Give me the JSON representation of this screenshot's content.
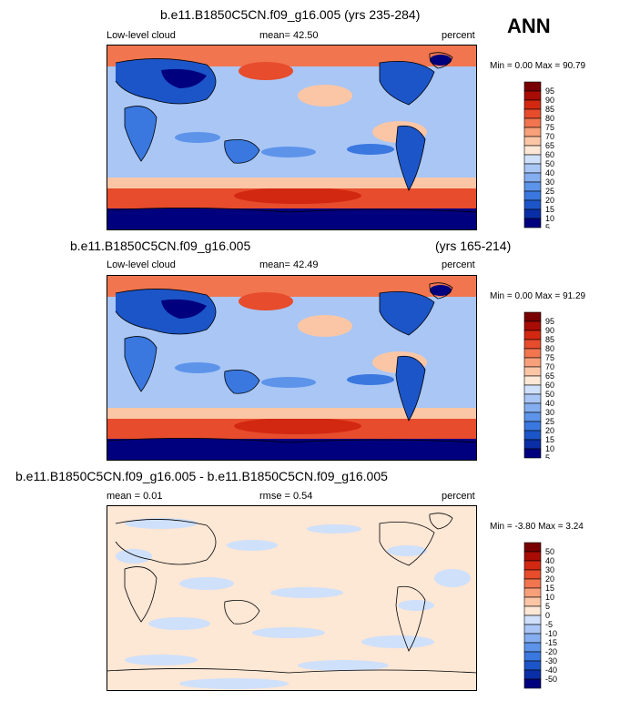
{
  "season": "ANN",
  "colors": {
    "cloud_scale": [
      "#00007e",
      "#0a2ea6",
      "#1c55c8",
      "#3a78e0",
      "#5d94ea",
      "#84aef0",
      "#a9c6f5",
      "#cfe0fa",
      "#fde7d5",
      "#fbc6a5",
      "#f7a07a",
      "#f1754f",
      "#e74c2c",
      "#d22812",
      "#a80c05",
      "#780000"
    ],
    "diff_scale": [
      "#00007e",
      "#0a2ea6",
      "#1c55c8",
      "#3a78e0",
      "#5d94ea",
      "#84aef0",
      "#a9c6f5",
      "#cfe0fa",
      "#fde7d5",
      "#fbc6a5",
      "#f7a07a",
      "#f1754f",
      "#e74c2c",
      "#d22812",
      "#a80c05",
      "#780000"
    ],
    "coast": "#000000"
  },
  "chart_data": [
    {
      "type": "heatmap",
      "title": "b.e11.B1850C5CN.f09_g16.005 (yrs 235-284)",
      "variable": "Low-level cloud",
      "stat_label": "mean=",
      "stat_value": "42.50",
      "units": "percent",
      "min_label": "Min =",
      "min_value": "0.00",
      "max_label": "Max =",
      "max_value": "90.79",
      "colorbar_levels": [
        5,
        10,
        15,
        20,
        25,
        30,
        40,
        50,
        60,
        65,
        70,
        75,
        80,
        85,
        90,
        95
      ],
      "colorbar_labels": [
        "95",
        "90",
        "85",
        "80",
        "75",
        "70",
        "65",
        "60",
        "50",
        "40",
        "30",
        "25",
        "20",
        "15",
        "10",
        "5"
      ]
    },
    {
      "type": "heatmap",
      "title_left": "b.e11.B1850C5CN.f09_g16.005",
      "title_right": "(yrs 165-214)",
      "variable": "Low-level cloud",
      "stat_label": "mean=",
      "stat_value": "42.49",
      "units": "percent",
      "min_label": "Min =",
      "min_value": "0.00",
      "max_label": "Max =",
      "max_value": "91.29",
      "colorbar_levels": [
        5,
        10,
        15,
        20,
        25,
        30,
        40,
        50,
        60,
        65,
        70,
        75,
        80,
        85,
        90,
        95
      ],
      "colorbar_labels": [
        "95",
        "90",
        "85",
        "80",
        "75",
        "70",
        "65",
        "60",
        "50",
        "40",
        "30",
        "25",
        "20",
        "15",
        "10",
        "5"
      ]
    },
    {
      "type": "heatmap",
      "title": "b.e11.B1850C5CN.f09_g16.005 - b.e11.B1850C5CN.f09_g16.005",
      "stat_label": "mean =",
      "stat_value": "0.01",
      "rmse_label": "rmse =",
      "rmse_value": "0.54",
      "units": "percent",
      "min_label": "Min =",
      "min_value": "-3.80",
      "max_label": "Max =",
      "max_value": "3.24",
      "colorbar_levels": [
        -50,
        -40,
        -30,
        -20,
        -15,
        -10,
        -5,
        0,
        5,
        10,
        15,
        20,
        30,
        40,
        50
      ],
      "colorbar_labels": [
        "50",
        "40",
        "30",
        "20",
        "15",
        "10",
        "5",
        "0",
        "-5",
        "-10",
        "-15",
        "-20",
        "-30",
        "-40",
        "-50"
      ]
    }
  ]
}
